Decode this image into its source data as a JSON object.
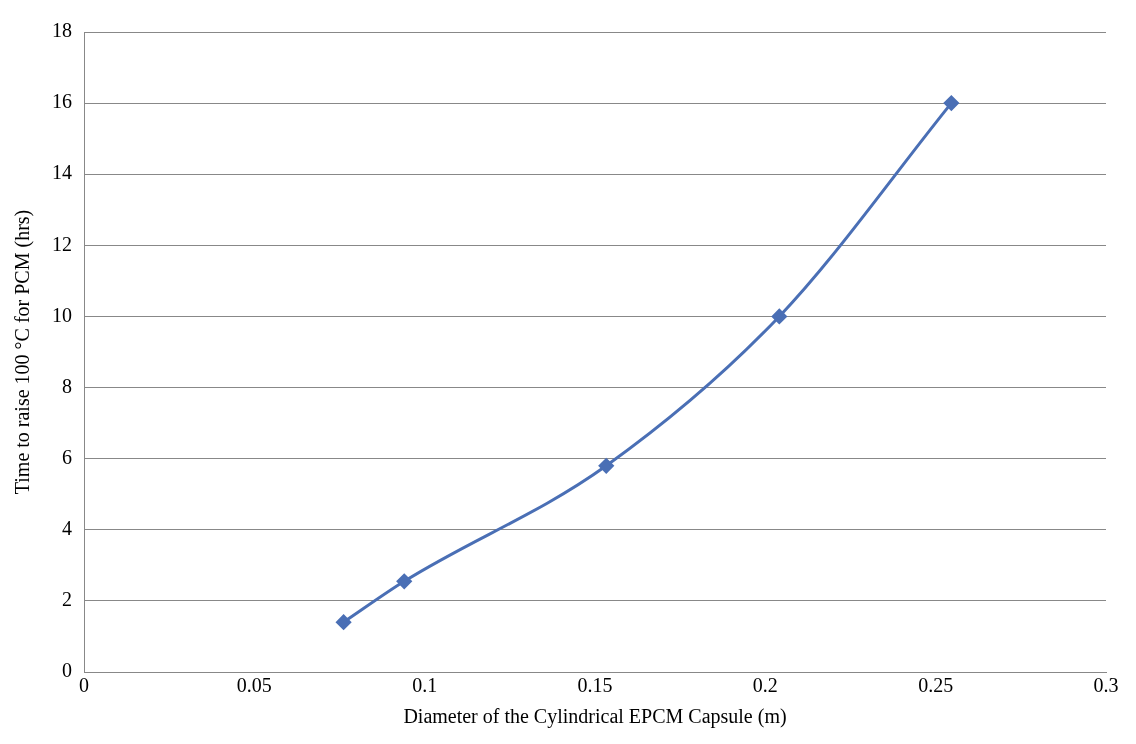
{
  "chart_data": {
    "type": "line",
    "xlabel": "Diameter of the Cylindrical EPCM Capsule (m)",
    "ylabel": "Time to raise 100 °C for PCM (hrs)",
    "x": [
      0.0762,
      0.094,
      0.1533,
      0.2041,
      0.2546
    ],
    "series": [
      {
        "color": "#4a6fb5",
        "values": [
          1.4,
          2.55,
          5.8,
          10.0,
          16.0
        ]
      }
    ],
    "xlim": [
      0,
      0.3
    ],
    "xticks": [
      0,
      0.05,
      0.1,
      0.15,
      0.2,
      0.25,
      0.3
    ],
    "ylim": [
      0,
      18
    ],
    "yticks": [
      0,
      2,
      4,
      6,
      8,
      10,
      12,
      14,
      16,
      18
    ],
    "grid": "y",
    "legend": false,
    "marker": "diamond",
    "line_style": "solid"
  }
}
